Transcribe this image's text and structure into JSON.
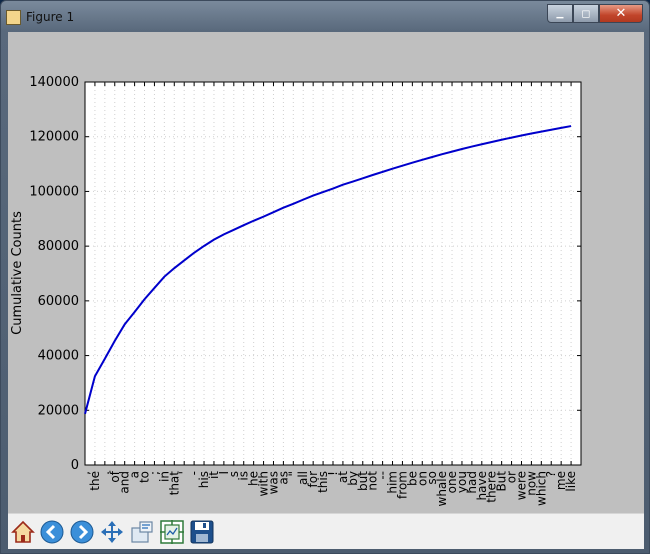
{
  "window": {
    "title": "Figure 1",
    "controls": {
      "minimize": "▁",
      "maximize": "◻",
      "close": "✕"
    }
  },
  "toolbar": {
    "buttons": [
      {
        "name": "home-button",
        "icon": "home-icon"
      },
      {
        "name": "back-button",
        "icon": "back-arrow-icon"
      },
      {
        "name": "forward-button",
        "icon": "forward-arrow-icon"
      },
      {
        "name": "pan-button",
        "icon": "pan-cross-icon"
      },
      {
        "name": "zoom-button",
        "icon": "zoom-rect-icon"
      },
      {
        "name": "subplots-button",
        "icon": "subplots-icon"
      },
      {
        "name": "save-button",
        "icon": "floppy-disk-icon"
      }
    ]
  },
  "chart_data": {
    "type": "line",
    "title": "",
    "xlabel": "",
    "ylabel": "Cumulative Counts",
    "ylim": [
      0,
      140000
    ],
    "yticks": [
      0,
      20000,
      40000,
      60000,
      80000,
      100000,
      120000,
      140000
    ],
    "grid": true,
    "line_color": "#0000cc",
    "categories": [
      ",",
      "the",
      ".",
      "of",
      "and",
      "a",
      "to",
      ";",
      "in",
      "that",
      "'",
      "-",
      "his",
      "it",
      "I",
      "s",
      "is",
      "he",
      "with",
      "was",
      "as",
      "\"",
      "all",
      "for",
      "this",
      "!",
      "at",
      "by",
      "but",
      "not",
      "--",
      "him",
      "from",
      "be",
      "on",
      "so",
      "whale",
      "one",
      "you",
      "had",
      "have",
      "there",
      "But",
      "or",
      "were",
      "now",
      "which",
      "?",
      "me",
      "like"
    ],
    "values": [
      18713,
      32447,
      38839,
      45375,
      51412,
      55932,
      60581,
      64734,
      68845,
      71955,
      74779,
      77585,
      80061,
      82369,
      84307,
      85973,
      87668,
      89275,
      90785,
      92418,
      94042,
      95475,
      97008,
      98491,
      99787,
      101050,
      102452,
      103604,
      104801,
      106000,
      107150,
      108300,
      109410,
      110500,
      111550,
      112580,
      113600,
      114560,
      115500,
      116400,
      117250,
      118080,
      118890,
      119680,
      120440,
      121160,
      121860,
      122550,
      123240,
      123900
    ]
  }
}
